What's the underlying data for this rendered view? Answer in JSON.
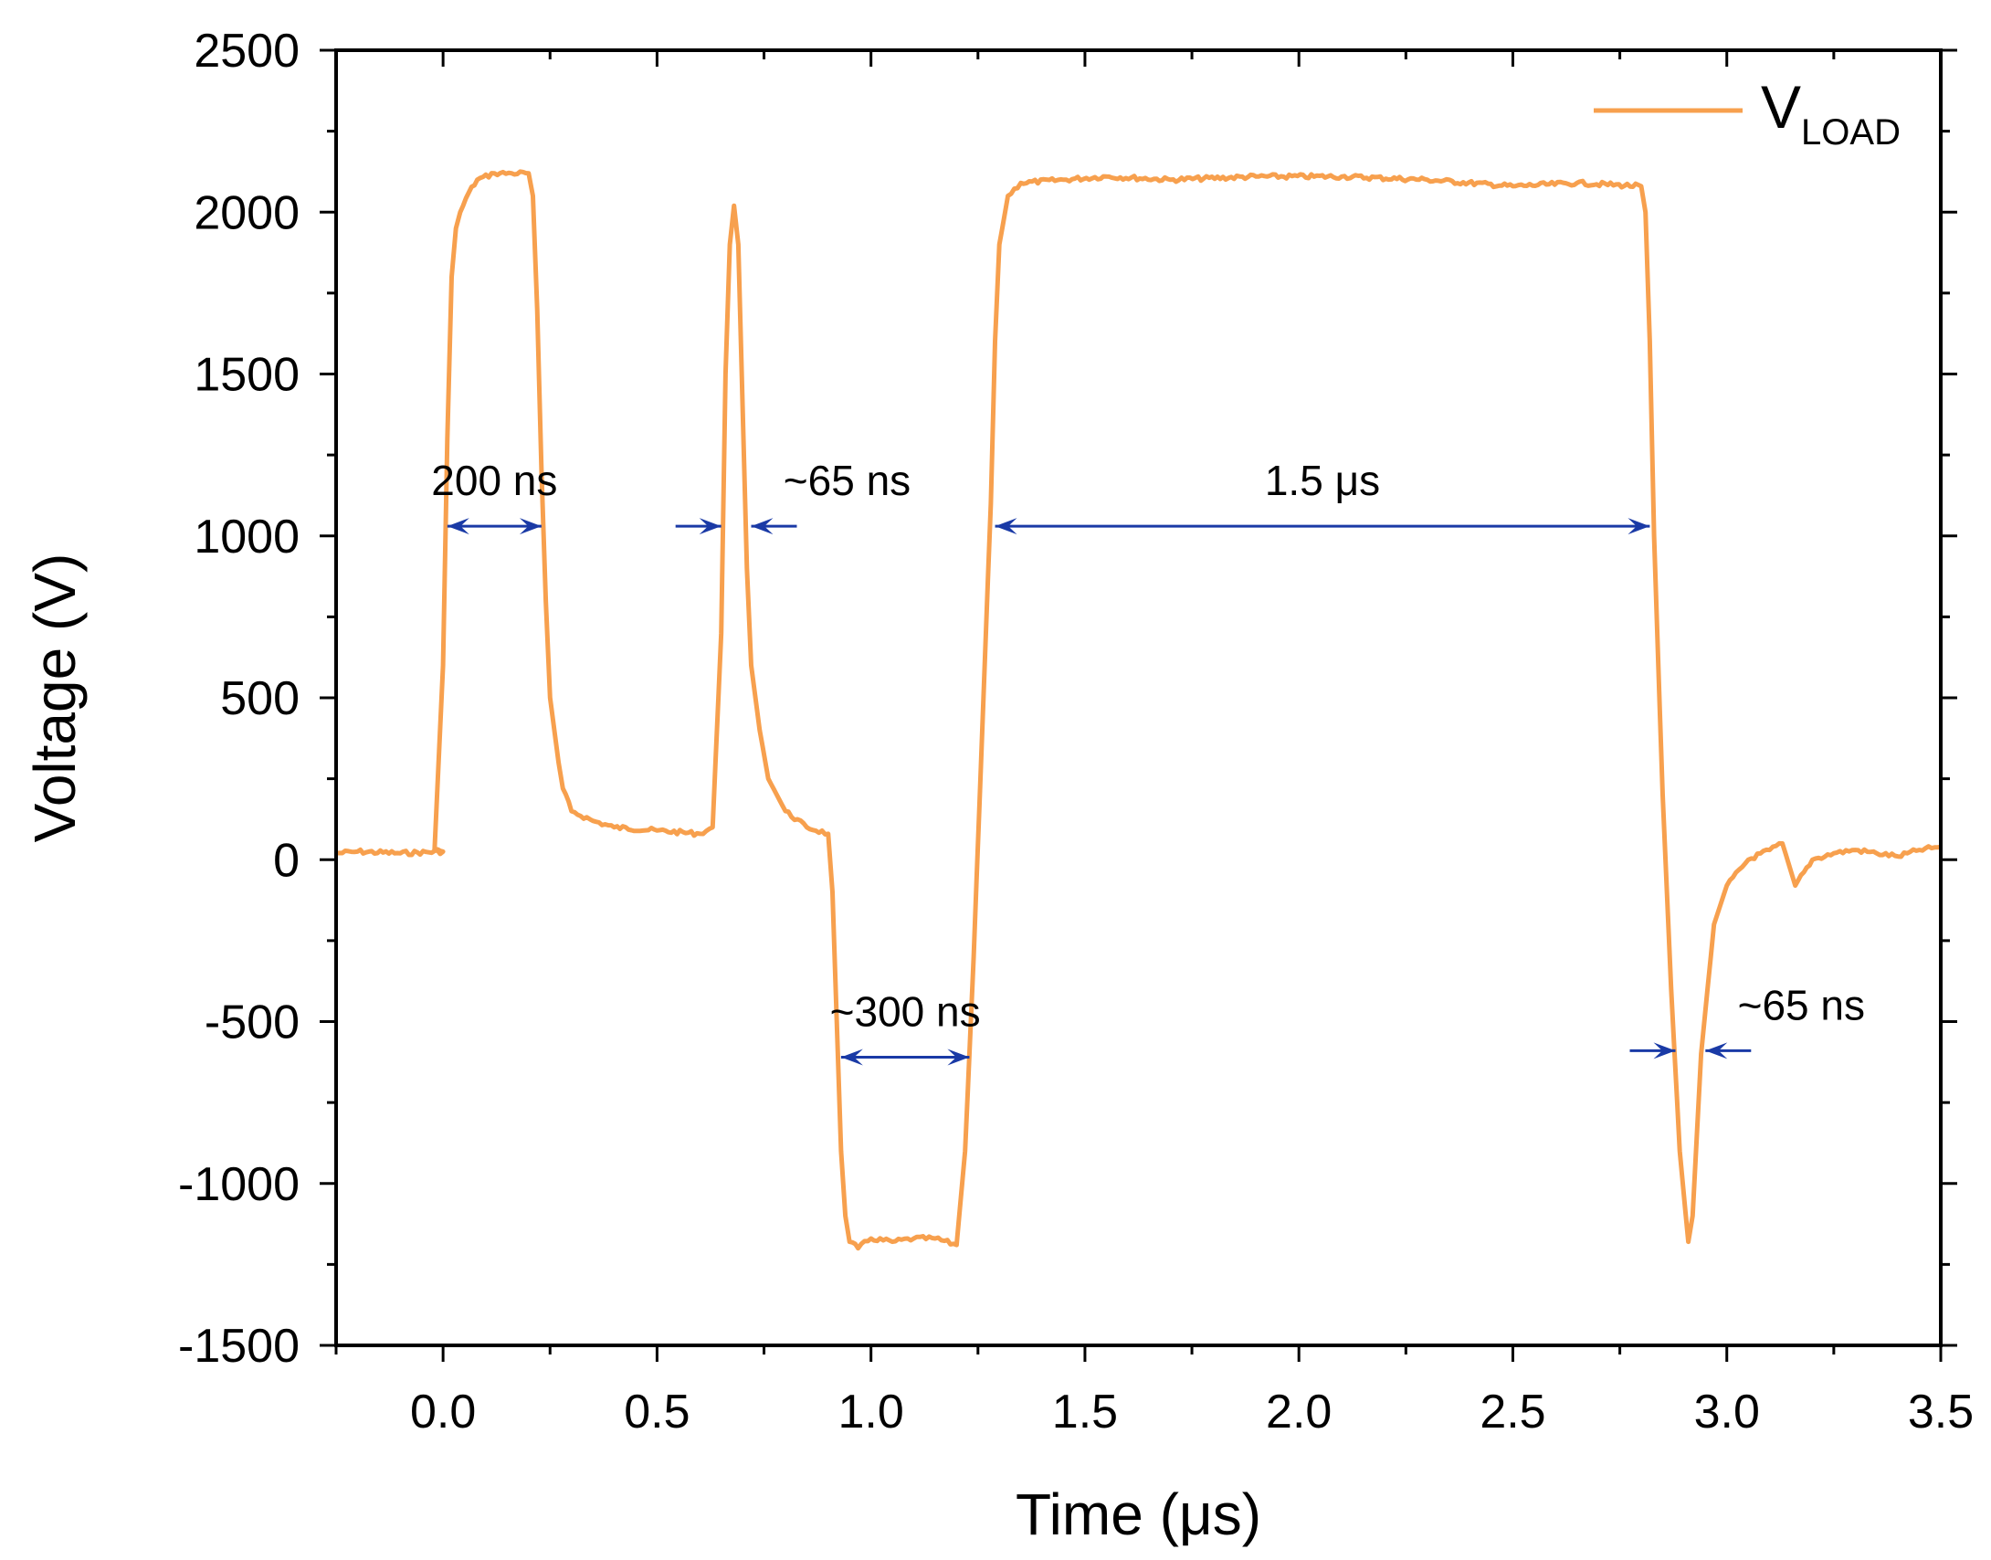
{
  "chart_data": {
    "type": "line",
    "title": "",
    "xlabel": "Time (μs)",
    "ylabel": "Voltage (V)",
    "xlim": [
      -0.25,
      3.5
    ],
    "ylim": [
      -1500,
      2500
    ],
    "xticks": [
      0.0,
      0.5,
      1.0,
      1.5,
      2.0,
      2.5,
      3.0,
      3.5
    ],
    "xtick_labels": [
      "0.0",
      "0.5",
      "1.0",
      "1.5",
      "2.0",
      "2.5",
      "3.0",
      "3.5"
    ],
    "yticks": [
      -1500,
      -1000,
      -500,
      0,
      500,
      1000,
      1500,
      2000,
      2500
    ],
    "ytick_labels": [
      "-1500",
      "-1000",
      "-500",
      "0",
      "500",
      "1000",
      "1500",
      "2000",
      "2500"
    ],
    "grid": false,
    "legend": {
      "position": "top-right",
      "entries": [
        {
          "label": "V",
          "subscript": "LOAD",
          "color": "#f7a04e"
        }
      ]
    },
    "series": [
      {
        "name": "VLOAD",
        "color": "#f7a04e",
        "x": [
          -0.25,
          -0.2,
          -0.1,
          0.0,
          -0.02,
          0.0,
          0.01,
          0.02,
          0.03,
          0.04,
          0.06,
          0.08,
          0.12,
          0.16,
          0.2,
          0.21,
          0.22,
          0.23,
          0.24,
          0.25,
          0.27,
          0.28,
          0.3,
          0.35,
          0.4,
          0.5,
          0.6,
          0.63,
          0.65,
          0.66,
          0.67,
          0.68,
          0.69,
          0.7,
          0.71,
          0.72,
          0.74,
          0.76,
          0.8,
          0.85,
          0.9,
          0.91,
          0.92,
          0.93,
          0.94,
          0.95,
          0.97,
          1.0,
          1.05,
          1.1,
          1.15,
          1.2,
          1.22,
          1.24,
          1.26,
          1.28,
          1.29,
          1.3,
          1.32,
          1.35,
          1.45,
          1.55,
          1.7,
          1.9,
          2.1,
          2.3,
          2.5,
          2.65,
          2.8,
          2.81,
          2.82,
          2.83,
          2.85,
          2.87,
          2.89,
          2.91,
          2.92,
          2.94,
          2.97,
          3.0,
          3.05,
          3.1,
          3.13,
          3.16,
          3.2,
          3.25,
          3.3,
          3.35,
          3.4,
          3.45,
          3.5
        ],
        "y": [
          20,
          25,
          20,
          25,
          30,
          600,
          1300,
          1800,
          1950,
          2000,
          2060,
          2100,
          2120,
          2120,
          2120,
          2050,
          1700,
          1200,
          800,
          500,
          300,
          220,
          150,
          120,
          100,
          90,
          80,
          100,
          700,
          1500,
          1900,
          2020,
          1900,
          1400,
          900,
          600,
          400,
          250,
          150,
          100,
          80,
          -100,
          -500,
          -900,
          -1100,
          -1180,
          -1200,
          -1170,
          -1180,
          -1170,
          -1170,
          -1190,
          -900,
          -300,
          400,
          1100,
          1600,
          1900,
          2050,
          2090,
          2100,
          2110,
          2100,
          2110,
          2110,
          2100,
          2080,
          2090,
          2080,
          2000,
          1600,
          1000,
          200,
          -400,
          -900,
          -1180,
          -1100,
          -600,
          -200,
          -80,
          0,
          30,
          50,
          -80,
          0,
          20,
          30,
          20,
          10,
          30,
          40
        ]
      }
    ],
    "annotations": [
      {
        "text": "200 ns",
        "x0": 0.01,
        "x1": 0.23,
        "y": 1030,
        "style": "inner"
      },
      {
        "text": "~65 ns",
        "x0": 0.65,
        "x1": 0.72,
        "y": 1030,
        "style": "outer"
      },
      {
        "text": "1.5 μs",
        "x0": 1.29,
        "x1": 2.82,
        "y": 1030,
        "style": "inner"
      },
      {
        "text": "~300 ns",
        "x0": 0.93,
        "x1": 1.23,
        "y": -610,
        "style": "inner"
      },
      {
        "text": "~65 ns",
        "x0": 2.88,
        "x1": 2.95,
        "y": -590,
        "style": "outer"
      }
    ]
  }
}
